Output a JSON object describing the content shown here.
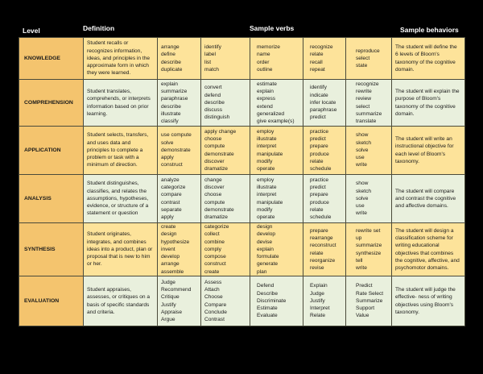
{
  "headers": {
    "level": "Level",
    "definition": "Definition",
    "sample_verbs": "Sample verbs",
    "sample_behaviors": "Sample behaviors"
  },
  "colors": {
    "level_cell": "#f4c46e",
    "yellow_row": "#fde39a",
    "green_row": "#e9f0dd",
    "background": "#000000"
  },
  "rows": [
    {
      "level": "KNOWLEDGE",
      "definition": "Student recalls or recognizes information, ideas, and principles in the approximate form in which they were learned.",
      "verbs": [
        [
          "arrange",
          "define",
          "describe",
          "duplicate"
        ],
        [
          "identify",
          "label",
          "list",
          "match"
        ],
        [
          "memorize",
          "name",
          "order",
          "outline"
        ],
        [
          "recognize",
          "relate",
          "recall",
          "repeat"
        ],
        [
          "reproduce",
          "select",
          "state"
        ]
      ],
      "behavior": "The student will define the 6 levels of Bloom's taxonomy of the cognitive domain."
    },
    {
      "level": "COMPREHENSION",
      "definition": "Student translates, comprehends, or interprets information based on prior learning.",
      "verbs": [
        [
          "explain",
          "summarize",
          "paraphrase",
          "describe",
          "illustrate",
          "classify"
        ],
        [
          "convert",
          "defend",
          "describe",
          "discuss",
          "distinguish"
        ],
        [
          "estimate",
          "explain",
          "express",
          "extend",
          "generalized",
          "give example(s)"
        ],
        [
          "identify",
          "indicate",
          "infer locate",
          "paraphrase",
          "predict"
        ],
        [
          "recognize",
          "rewrite",
          "review",
          "select",
          "summarize",
          "translate"
        ]
      ],
      "behavior": "The student will explain the purpose of Bloom's taxonomy of the cognitive domain."
    },
    {
      "level": "APPLICATION",
      "definition": "Student selects, transfers, and uses data and principles to complete a problem or task with a minimum of direction.",
      "verbs": [
        [
          "use compute",
          "solve",
          "demonstrate",
          "apply",
          "construct"
        ],
        [
          "apply change",
          "choose",
          "compute",
          "demonstrate",
          "discover",
          "dramatize"
        ],
        [
          "employ",
          "illustrate",
          "interpret",
          "manipulate",
          "modify",
          "operate"
        ],
        [
          "practice",
          "predict",
          "prepare",
          "produce",
          "relate",
          "schedule"
        ],
        [
          "show",
          "sketch",
          "solve",
          "use",
          "write"
        ]
      ],
      "behavior": "The student will write an instructional objective for each level of Bloom's taxonomy."
    },
    {
      "level": "ANALYSIS",
      "definition": "Student distinguishes, classifies, and relates the assumptions, hypotheses, evidence, or structure of a statement or question",
      "verbs": [
        [
          "analyze",
          "categorize",
          "compare",
          "contrast",
          "separate",
          "apply"
        ],
        [
          "change",
          "discover",
          "choose",
          "compute",
          "demonstrate",
          "dramatize"
        ],
        [
          "employ",
          "illustrate",
          "interpret",
          "manipulate",
          "modify",
          "operate"
        ],
        [
          "practice",
          "predict",
          "prepare",
          "produce",
          "relate",
          "schedule"
        ],
        [
          "show",
          "sketch",
          "solve",
          "use",
          "write"
        ]
      ],
      "behavior": "The student will compare and contrast the cognitive and affective domains."
    },
    {
      "level": "SYNTHESIS",
      "definition": "Student originates, integrates, and combines ideas into a product, plan or proposal that is new to him or her.",
      "verbs": [
        [
          "create",
          "design",
          "hypothesize",
          "invent",
          "develop",
          "arrange",
          "assemble"
        ],
        [
          "categorize",
          "collect",
          "combine",
          "comply",
          "compose",
          "construct",
          "create"
        ],
        [
          "design",
          "develop",
          "devise",
          "explain",
          "formulate",
          "generate",
          "plan"
        ],
        [
          "prepare",
          "rearrange",
          "reconstruct",
          "relate",
          "reorganize",
          "revise"
        ],
        [
          "rewrite set",
          "up",
          "summarize",
          "synthesize",
          "tell",
          "write"
        ]
      ],
      "behavior": "The student will design a classification scheme for writing educational objectives that combines the cognitive, affective, and psychomotor domains."
    },
    {
      "level": "EVALUATION",
      "definition": "Student appraises, assesses, or critiques on a basis of specific standards and criteria.",
      "verbs": [
        [
          "Judge",
          "Recommend",
          "Critique",
          "Justify",
          "Appraise",
          "Argue"
        ],
        [
          "Assess",
          "Attach",
          "Choose",
          "Compare",
          "Conclude",
          "Contrast"
        ],
        [
          "Defend",
          "Describe",
          "Discriminate",
          "Estimate",
          "Evaluate"
        ],
        [
          "Explain",
          "Judge",
          "Justify",
          "Interpret",
          "Relate"
        ],
        [
          "Predict",
          "Rate Select",
          "Summarize",
          "Support",
          "Value"
        ]
      ],
      "behavior": "The student will judge the effective- ness of writing objectives using Bloom's taxonomy."
    }
  ]
}
